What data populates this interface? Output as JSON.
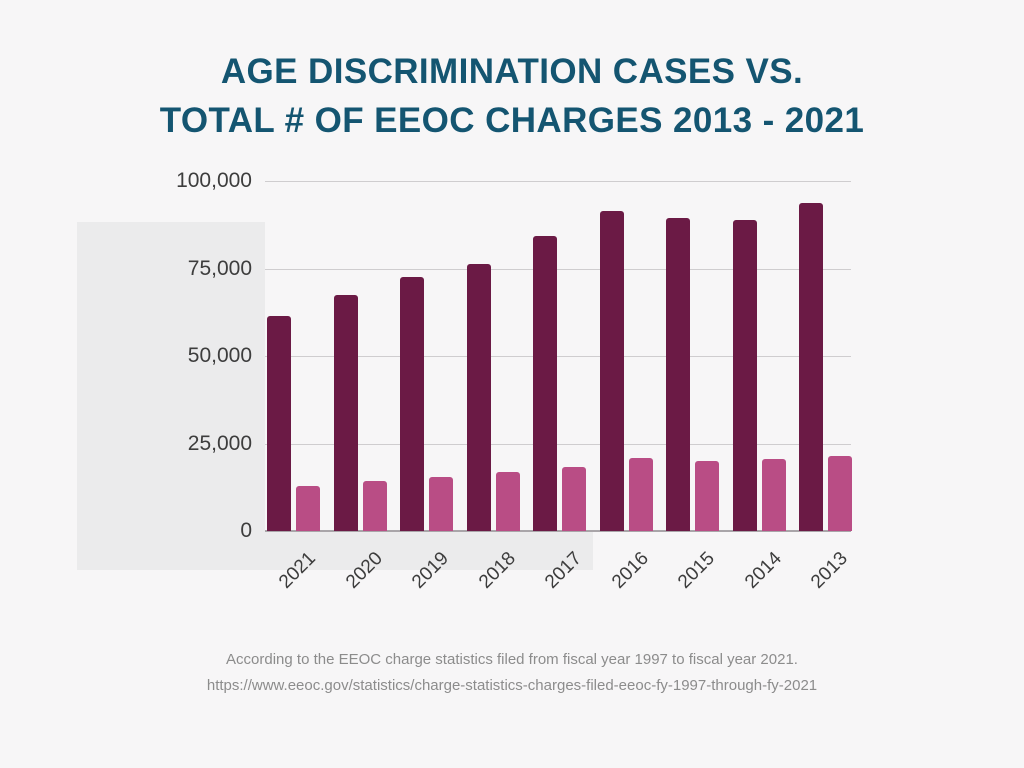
{
  "page": {
    "background_color": "#f7f6f7",
    "panel_color": "#ebebec"
  },
  "title": {
    "line1": "AGE DISCRIMINATION CASES VS.",
    "line2": "TOTAL # OF EEOC CHARGES 2013 - 2021",
    "color": "#145571"
  },
  "footer": {
    "line1": "According to the EEOC charge statistics filed from fiscal year 1997 to fiscal year 2021.",
    "line2": "https://www.eeoc.gov/statistics/charge-statistics-charges-filed-eeoc-fy-1997-through-fy-2021"
  },
  "chart_data": {
    "type": "bar",
    "title": "AGE DISCRIMINATION CASES VS. TOTAL # OF EEOC CHARGES 2013 - 2021",
    "categories": [
      "2021",
      "2020",
      "2019",
      "2018",
      "2017",
      "2016",
      "2015",
      "2014",
      "2013"
    ],
    "series": [
      {
        "name": "Total # of EEOC charges",
        "color": "#6b1a45",
        "values": [
          61331,
          67448,
          72675,
          76418,
          84254,
          91503,
          89385,
          88778,
          93727
        ]
      },
      {
        "name": "Age discrimination cases",
        "color": "#b94d85",
        "values": [
          12965,
          14183,
          15573,
          16911,
          18376,
          20857,
          20144,
          20588,
          21396
        ]
      }
    ],
    "xlabel": "",
    "ylabel": "",
    "ylim": [
      0,
      100000
    ],
    "yticks": [
      0,
      25000,
      50000,
      75000,
      100000
    ],
    "ytick_labels": [
      "0",
      "25,000",
      "50,000",
      "75,000",
      "100,000"
    ],
    "grid": true,
    "legend_position": "none",
    "axis_label_color": "#3d3d3d",
    "gridline_color": "#cfcdcf"
  }
}
